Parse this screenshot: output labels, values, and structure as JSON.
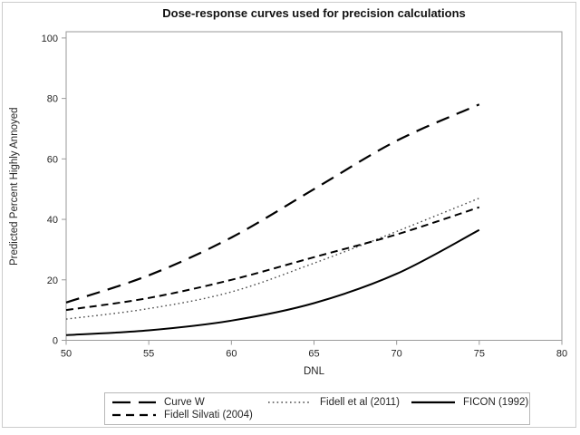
{
  "chart_data": {
    "type": "line",
    "title": "Dose-response curves used for precision calculations",
    "xlabel": "DNL",
    "ylabel": "Predicted Percent Highly Annoyed",
    "xlim": [
      50,
      80
    ],
    "ylim": [
      0,
      100
    ],
    "x_ticks": [
      50,
      55,
      60,
      65,
      70,
      75,
      80
    ],
    "y_ticks": [
      0,
      20,
      40,
      60,
      80,
      100
    ],
    "grid": false,
    "legend_position": "bottom",
    "x": [
      50,
      55,
      60,
      65,
      70,
      75
    ],
    "series": [
      {
        "name": "Curve W",
        "line_style": "long-dash",
        "color": "#000000",
        "values": [
          12.5,
          21.5,
          34,
          50,
          66,
          78
        ]
      },
      {
        "name": "Fidell et al (2011)",
        "line_style": "dotted",
        "color": "#4a4a4a",
        "values": [
          7,
          10.5,
          16,
          25.5,
          36,
          47
        ]
      },
      {
        "name": "FICON (1992)",
        "line_style": "solid",
        "color": "#000000",
        "values": [
          1.7,
          3.3,
          6.5,
          12.3,
          22,
          36.5
        ]
      },
      {
        "name": "Fidell Silvati (2004)",
        "line_style": "medium-dash",
        "color": "#000000",
        "values": [
          10,
          14,
          20,
          27.5,
          35,
          44
        ]
      }
    ],
    "frame_color": "#9a9a9a",
    "tick_label_color": "#262626"
  }
}
